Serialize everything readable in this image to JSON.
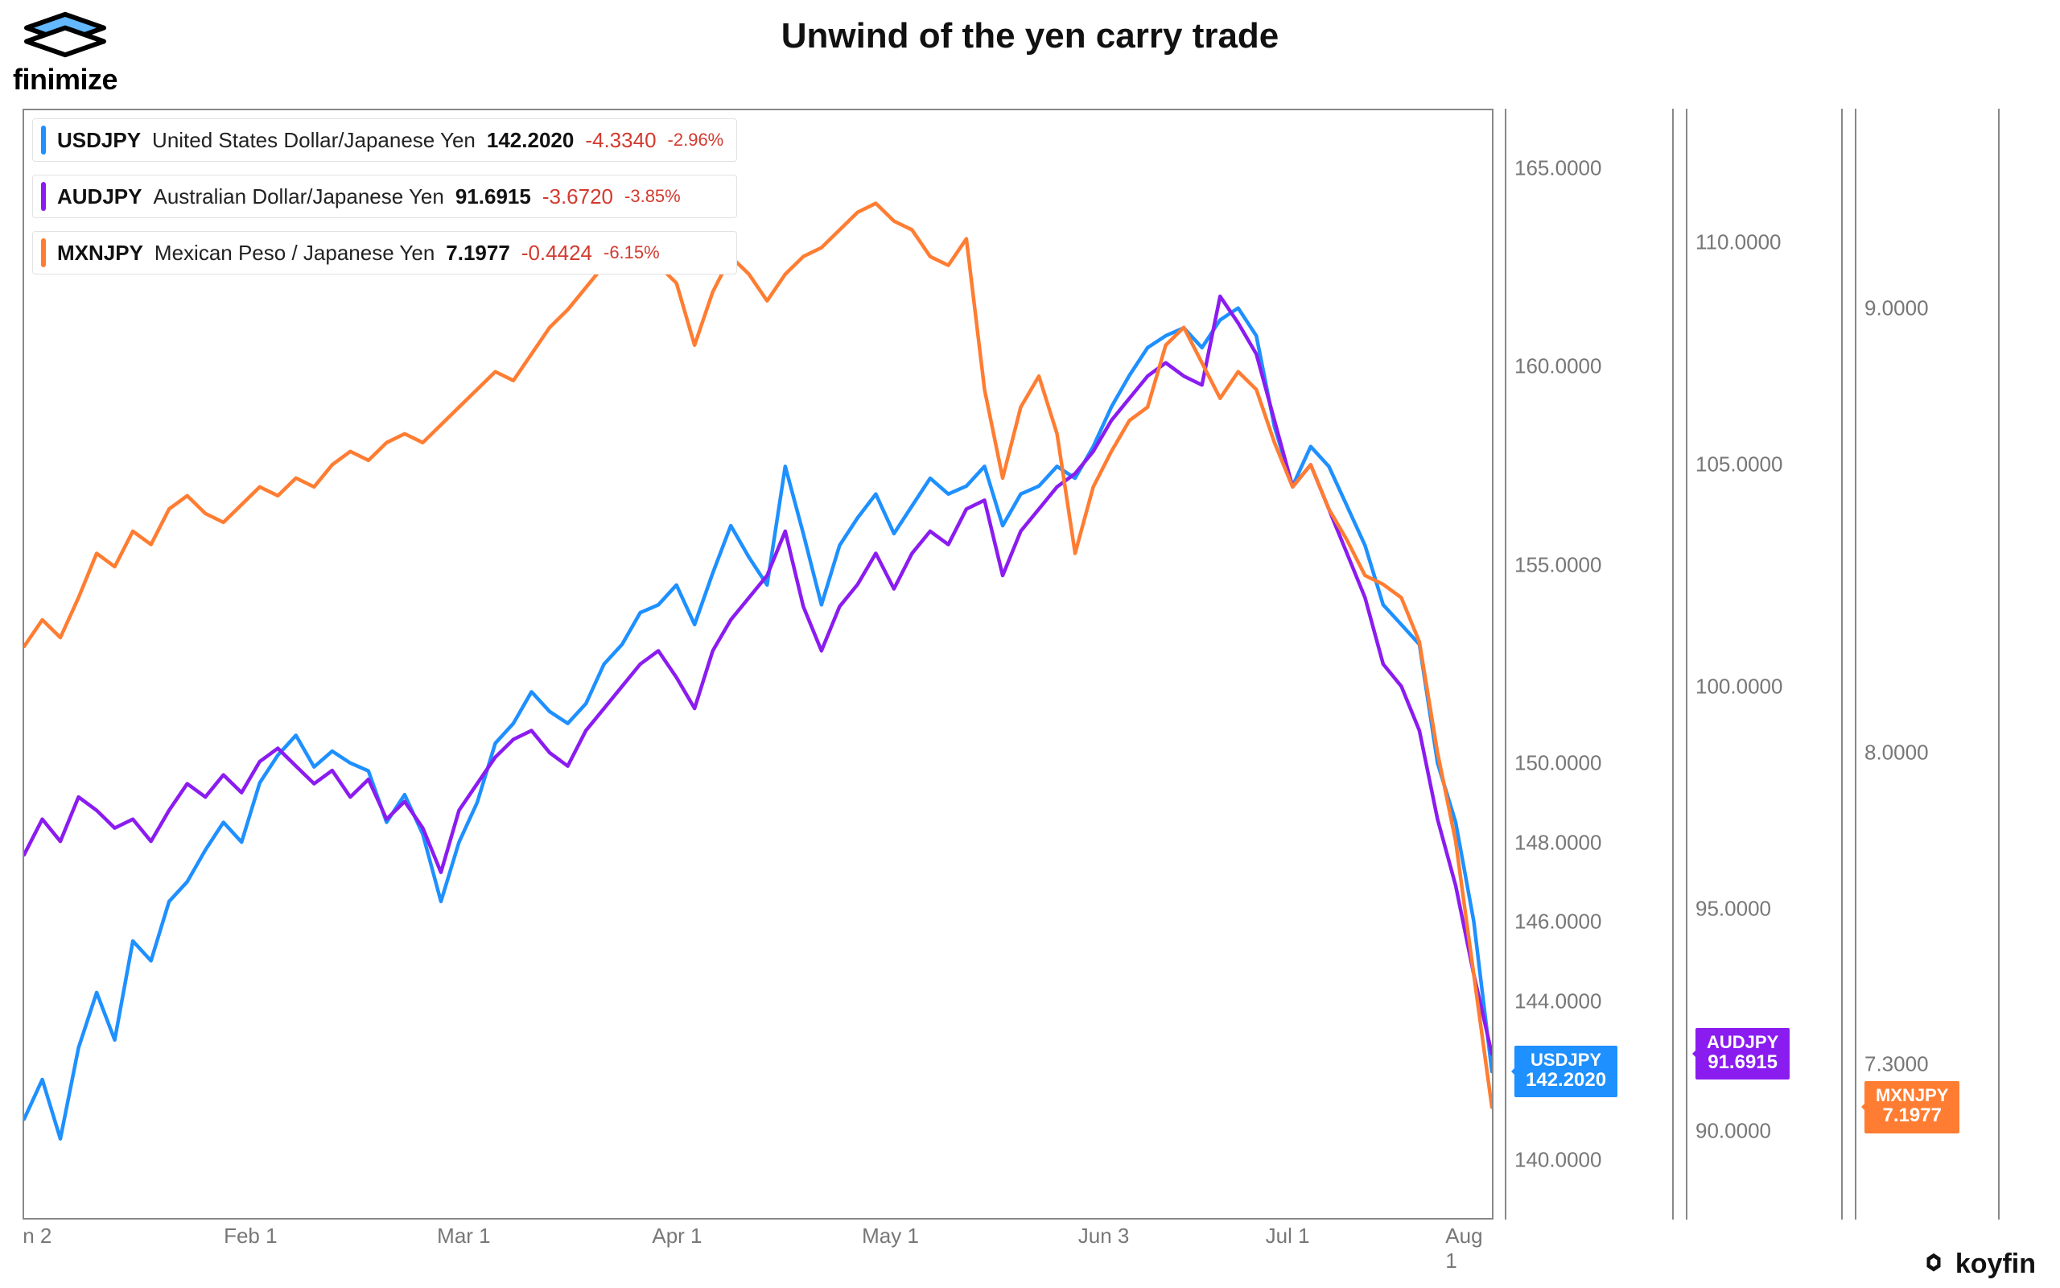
{
  "title": "Unwind of the yen carry trade",
  "branding": {
    "topLeft": "finimize",
    "bottomRight": "koyfin"
  },
  "chart": {
    "type": "line",
    "background_color": "#ffffff",
    "border_color": "#888888",
    "line_width": 4.5,
    "x_axis": {
      "ticks": [
        "n 2",
        "Feb 1",
        "Mar 1",
        "Apr 1",
        "May 1",
        "Jun 3",
        "Jul 1",
        "Aug 1"
      ],
      "tick_positions_pct": [
        1,
        15.5,
        30,
        44.5,
        59,
        73.5,
        86,
        98
      ],
      "label_color": "#777777",
      "label_fontsize": 26
    },
    "series": [
      {
        "id": "USDJPY",
        "symbol": "USDJPY",
        "name": "United States Dollar/Japanese Yen",
        "last": "142.2020",
        "change": "-4.3340",
        "pct": "-2.96%",
        "color": "#1e90ff",
        "axis": 0,
        "y_min": 138.5,
        "y_max": 166.5,
        "y_ticks": [
          "140.0000",
          "144.0000",
          "146.0000",
          "148.0000",
          "150.0000",
          "155.0000",
          "160.0000",
          "165.0000"
        ],
        "y_tick_vals": [
          140,
          144,
          146,
          148,
          150,
          155,
          160,
          165
        ],
        "tag": {
          "symbol": "USDJPY",
          "value": "142.2020"
        },
        "data": [
          [
            0,
            141.0
          ],
          [
            1,
            142.0
          ],
          [
            2,
            140.5
          ],
          [
            3,
            142.8
          ],
          [
            4,
            144.2
          ],
          [
            5,
            143.0
          ],
          [
            6,
            145.5
          ],
          [
            7,
            145.0
          ],
          [
            8,
            146.5
          ],
          [
            9,
            147.0
          ],
          [
            10,
            147.8
          ],
          [
            11,
            148.5
          ],
          [
            12,
            148.0
          ],
          [
            13,
            149.5
          ],
          [
            14,
            150.2
          ],
          [
            15,
            150.7
          ],
          [
            16,
            149.9
          ],
          [
            17,
            150.3
          ],
          [
            18,
            150.0
          ],
          [
            19,
            149.8
          ],
          [
            20,
            148.5
          ],
          [
            21,
            149.2
          ],
          [
            22,
            148.2
          ],
          [
            23,
            146.5
          ],
          [
            24,
            148.0
          ],
          [
            25,
            149.0
          ],
          [
            26,
            150.5
          ],
          [
            27,
            151.0
          ],
          [
            28,
            151.8
          ],
          [
            29,
            151.3
          ],
          [
            30,
            151.0
          ],
          [
            31,
            151.5
          ],
          [
            32,
            152.5
          ],
          [
            33,
            153.0
          ],
          [
            34,
            153.8
          ],
          [
            35,
            154.0
          ],
          [
            36,
            154.5
          ],
          [
            37,
            153.5
          ],
          [
            38,
            154.8
          ],
          [
            39,
            156.0
          ],
          [
            40,
            155.2
          ],
          [
            41,
            154.5
          ],
          [
            42,
            157.5
          ],
          [
            43,
            155.8
          ],
          [
            44,
            154.0
          ],
          [
            45,
            155.5
          ],
          [
            46,
            156.2
          ],
          [
            47,
            156.8
          ],
          [
            48,
            155.8
          ],
          [
            49,
            156.5
          ],
          [
            50,
            157.2
          ],
          [
            51,
            156.8
          ],
          [
            52,
            157.0
          ],
          [
            53,
            157.5
          ],
          [
            54,
            156.0
          ],
          [
            55,
            156.8
          ],
          [
            56,
            157.0
          ],
          [
            57,
            157.5
          ],
          [
            58,
            157.2
          ],
          [
            59,
            158.0
          ],
          [
            60,
            159.0
          ],
          [
            61,
            159.8
          ],
          [
            62,
            160.5
          ],
          [
            63,
            160.8
          ],
          [
            64,
            161.0
          ],
          [
            65,
            160.5
          ],
          [
            66,
            161.2
          ],
          [
            67,
            161.5
          ],
          [
            68,
            160.8
          ],
          [
            69,
            158.5
          ],
          [
            70,
            157.0
          ],
          [
            71,
            158.0
          ],
          [
            72,
            157.5
          ],
          [
            73,
            156.5
          ],
          [
            74,
            155.5
          ],
          [
            75,
            154.0
          ],
          [
            76,
            153.5
          ],
          [
            77,
            153.0
          ],
          [
            78,
            150.0
          ],
          [
            79,
            148.5
          ],
          [
            80,
            146.0
          ],
          [
            81,
            142.2
          ]
        ]
      },
      {
        "id": "AUDJPY",
        "symbol": "AUDJPY",
        "name": "Australian Dollar/Japanese Yen",
        "last": "91.6915",
        "change": "-3.6720",
        "pct": "-3.85%",
        "color": "#8b1cf0",
        "axis": 1,
        "y_min": 88,
        "y_max": 113,
        "y_ticks": [
          "90.0000",
          "95.0000",
          "100.0000",
          "105.0000",
          "110.0000"
        ],
        "y_tick_vals": [
          90,
          95,
          100,
          105,
          110
        ],
        "tag": {
          "symbol": "AUDJPY",
          "value": "91.6915"
        },
        "data": [
          [
            0,
            96.2
          ],
          [
            1,
            97.0
          ],
          [
            2,
            96.5
          ],
          [
            3,
            97.5
          ],
          [
            4,
            97.2
          ],
          [
            5,
            96.8
          ],
          [
            6,
            97.0
          ],
          [
            7,
            96.5
          ],
          [
            8,
            97.2
          ],
          [
            9,
            97.8
          ],
          [
            10,
            97.5
          ],
          [
            11,
            98.0
          ],
          [
            12,
            97.6
          ],
          [
            13,
            98.3
          ],
          [
            14,
            98.6
          ],
          [
            15,
            98.2
          ],
          [
            16,
            97.8
          ],
          [
            17,
            98.1
          ],
          [
            18,
            97.5
          ],
          [
            19,
            97.9
          ],
          [
            20,
            97.0
          ],
          [
            21,
            97.4
          ],
          [
            22,
            96.8
          ],
          [
            23,
            95.8
          ],
          [
            24,
            97.2
          ],
          [
            25,
            97.8
          ],
          [
            26,
            98.4
          ],
          [
            27,
            98.8
          ],
          [
            28,
            99.0
          ],
          [
            29,
            98.5
          ],
          [
            30,
            98.2
          ],
          [
            31,
            99.0
          ],
          [
            32,
            99.5
          ],
          [
            33,
            100.0
          ],
          [
            34,
            100.5
          ],
          [
            35,
            100.8
          ],
          [
            36,
            100.2
          ],
          [
            37,
            99.5
          ],
          [
            38,
            100.8
          ],
          [
            39,
            101.5
          ],
          [
            40,
            102.0
          ],
          [
            41,
            102.5
          ],
          [
            42,
            103.5
          ],
          [
            43,
            101.8
          ],
          [
            44,
            100.8
          ],
          [
            45,
            101.8
          ],
          [
            46,
            102.3
          ],
          [
            47,
            103.0
          ],
          [
            48,
            102.2
          ],
          [
            49,
            103.0
          ],
          [
            50,
            103.5
          ],
          [
            51,
            103.2
          ],
          [
            52,
            104.0
          ],
          [
            53,
            104.2
          ],
          [
            54,
            102.5
          ],
          [
            55,
            103.5
          ],
          [
            56,
            104.0
          ],
          [
            57,
            104.5
          ],
          [
            58,
            104.8
          ],
          [
            59,
            105.3
          ],
          [
            60,
            106.0
          ],
          [
            61,
            106.5
          ],
          [
            62,
            107.0
          ],
          [
            63,
            107.3
          ],
          [
            64,
            107.0
          ],
          [
            65,
            106.8
          ],
          [
            66,
            108.8
          ],
          [
            67,
            108.2
          ],
          [
            68,
            107.5
          ],
          [
            69,
            106.0
          ],
          [
            70,
            104.5
          ],
          [
            71,
            105.0
          ],
          [
            72,
            104.0
          ],
          [
            73,
            103.0
          ],
          [
            74,
            102.0
          ],
          [
            75,
            100.5
          ],
          [
            76,
            100.0
          ],
          [
            77,
            99.0
          ],
          [
            78,
            97.0
          ],
          [
            79,
            95.5
          ],
          [
            80,
            93.5
          ],
          [
            81,
            91.7
          ]
        ]
      },
      {
        "id": "MXNJPY",
        "symbol": "MXNJPY",
        "name": "Mexican Peso / Japanese Yen",
        "last": "7.1977",
        "change": "-0.4424",
        "pct": "-6.15%",
        "color": "#ff7d32",
        "axis": 2,
        "y_min": 6.95,
        "y_max": 9.45,
        "y_ticks": [
          "7.3000",
          "8.0000",
          "9.0000"
        ],
        "y_tick_vals": [
          7.3,
          8.0,
          9.0
        ],
        "tag": {
          "symbol": "MXNJPY",
          "value": "7.1977"
        },
        "data": [
          [
            0,
            8.24
          ],
          [
            1,
            8.3
          ],
          [
            2,
            8.26
          ],
          [
            3,
            8.35
          ],
          [
            4,
            8.45
          ],
          [
            5,
            8.42
          ],
          [
            6,
            8.5
          ],
          [
            7,
            8.47
          ],
          [
            8,
            8.55
          ],
          [
            9,
            8.58
          ],
          [
            10,
            8.54
          ],
          [
            11,
            8.52
          ],
          [
            12,
            8.56
          ],
          [
            13,
            8.6
          ],
          [
            14,
            8.58
          ],
          [
            15,
            8.62
          ],
          [
            16,
            8.6
          ],
          [
            17,
            8.65
          ],
          [
            18,
            8.68
          ],
          [
            19,
            8.66
          ],
          [
            20,
            8.7
          ],
          [
            21,
            8.72
          ],
          [
            22,
            8.7
          ],
          [
            23,
            8.74
          ],
          [
            24,
            8.78
          ],
          [
            25,
            8.82
          ],
          [
            26,
            8.86
          ],
          [
            27,
            8.84
          ],
          [
            28,
            8.9
          ],
          [
            29,
            8.96
          ],
          [
            30,
            9.0
          ],
          [
            31,
            9.05
          ],
          [
            32,
            9.1
          ],
          [
            33,
            9.14
          ],
          [
            34,
            9.16
          ],
          [
            35,
            9.1
          ],
          [
            36,
            9.06
          ],
          [
            37,
            8.92
          ],
          [
            38,
            9.04
          ],
          [
            39,
            9.12
          ],
          [
            40,
            9.08
          ],
          [
            41,
            9.02
          ],
          [
            42,
            9.08
          ],
          [
            43,
            9.12
          ],
          [
            44,
            9.14
          ],
          [
            45,
            9.18
          ],
          [
            46,
            9.22
          ],
          [
            47,
            9.24
          ],
          [
            48,
            9.2
          ],
          [
            49,
            9.18
          ],
          [
            50,
            9.12
          ],
          [
            51,
            9.1
          ],
          [
            52,
            9.16
          ],
          [
            53,
            8.82
          ],
          [
            54,
            8.62
          ],
          [
            55,
            8.78
          ],
          [
            56,
            8.85
          ],
          [
            57,
            8.72
          ],
          [
            58,
            8.45
          ],
          [
            59,
            8.6
          ],
          [
            60,
            8.68
          ],
          [
            61,
            8.75
          ],
          [
            62,
            8.78
          ],
          [
            63,
            8.92
          ],
          [
            64,
            8.96
          ],
          [
            65,
            8.88
          ],
          [
            66,
            8.8
          ],
          [
            67,
            8.86
          ],
          [
            68,
            8.82
          ],
          [
            69,
            8.7
          ],
          [
            70,
            8.6
          ],
          [
            71,
            8.65
          ],
          [
            72,
            8.55
          ],
          [
            73,
            8.48
          ],
          [
            74,
            8.4
          ],
          [
            75,
            8.38
          ],
          [
            76,
            8.35
          ],
          [
            77,
            8.25
          ],
          [
            78,
            8.0
          ],
          [
            79,
            7.8
          ],
          [
            80,
            7.5
          ],
          [
            81,
            7.2
          ]
        ]
      }
    ],
    "legend_text_color": "#111111",
    "change_color": "#d33a2f",
    "x_extent": 81,
    "price_tags": [
      {
        "series": 0,
        "col": 0,
        "top_pct_key": "computed"
      },
      {
        "series": 1,
        "col": 1
      },
      {
        "series": 2,
        "col": 2
      }
    ]
  }
}
